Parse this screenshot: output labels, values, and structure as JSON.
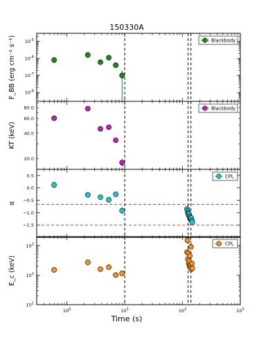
{
  "title": "150330A",
  "xlabel": "Time (s)",
  "xscale": "log",
  "xlim": [
    0.3,
    1000
  ],
  "xticks": [
    {
      "value": 1,
      "base": "10",
      "exp": "0"
    },
    {
      "value": 10,
      "base": "10",
      "exp": "1"
    },
    {
      "value": 100,
      "base": "10",
      "exp": "2"
    },
    {
      "value": 1000,
      "base": "10",
      "exp": "3"
    }
  ],
  "vlines": [
    10,
    125,
    140
  ],
  "colors": {
    "green": "#1a8a1a",
    "magenta": "#c020c0",
    "cyan": "#26c6c6",
    "orange": "#f5931e",
    "dashed_red": "#c0283c"
  },
  "chart_data": [
    {
      "type": "scatter",
      "ylabel": "F_BB (erg cm⁻² s⁻¹)",
      "yscale": "log",
      "ylim": [
        3e-09,
        3e-05
      ],
      "yticks": [
        {
          "value": 1e-05,
          "base": "10",
          "exp": "-5"
        },
        {
          "value": 1e-06,
          "base": "10",
          "exp": "-6"
        },
        {
          "value": 1e-07,
          "base": "10",
          "exp": "-7"
        },
        {
          "value": 1e-08,
          "base": "10",
          "exp": "-8"
        }
      ],
      "legend": {
        "label": "Blackbody",
        "location": "top-right"
      },
      "series": [
        {
          "name": "Blackbody",
          "x": [
            0.6,
            2.3,
            3.8,
            5.3,
            7.0,
            9.0
          ],
          "y": [
            8e-07,
            1.6e-06,
            6e-07,
            1.1e-06,
            4e-07,
            1e-07
          ],
          "yerr_low": [
            0,
            0,
            0,
            0,
            0,
            9.7e-08
          ],
          "yerr_high": [
            0,
            0,
            0,
            0,
            0,
            1e-07
          ]
        }
      ]
    },
    {
      "type": "scatter",
      "ylabel": "KT (keV)",
      "yscale": "log",
      "ylim": [
        15,
        95
      ],
      "yticks": [
        {
          "value": 20,
          "label": "20.0"
        },
        {
          "value": 40,
          "label": "40.0"
        },
        {
          "value": 60,
          "label": "60.0"
        },
        {
          "value": 80,
          "label": "80.0"
        }
      ],
      "legend": {
        "label": "Blackbody",
        "location": "top-right"
      },
      "series": [
        {
          "name": "Blackbody",
          "x": [
            0.6,
            2.3,
            3.8,
            5.3,
            7.0,
            9.0
          ],
          "y": [
            60,
            78,
            45,
            47,
            33,
            18
          ],
          "yerr_low": [
            0,
            0,
            0,
            0,
            0,
            2
          ],
          "yerr_high": [
            0,
            0,
            0,
            0,
            0,
            2
          ]
        }
      ]
    },
    {
      "type": "scatter",
      "ylabel": "α",
      "yscale": "linear",
      "ylim": [
        -2.0,
        0.75
      ],
      "yticks": [
        {
          "value": 0.5,
          "label": "0.5"
        },
        {
          "value": 0.0,
          "label": "0.0"
        },
        {
          "value": -0.5,
          "label": "−0.5"
        },
        {
          "value": -1.0,
          "label": "−1.0"
        },
        {
          "value": -1.5,
          "label": "−1.5"
        }
      ],
      "hlines": [
        -0.67,
        -1.5
      ],
      "legend": {
        "label": "CPL",
        "location": "top-right"
      },
      "series": [
        {
          "name": "CPL",
          "x": [
            0.6,
            2.3,
            3.8,
            5.3,
            7.0,
            9.0,
            120,
            122,
            124,
            126,
            128,
            130,
            132,
            134,
            136,
            138,
            140,
            142,
            145,
            148
          ],
          "y": [
            0.12,
            -0.28,
            -0.38,
            -0.48,
            -0.26,
            -0.92,
            -0.85,
            -0.92,
            -1.0,
            -1.05,
            -1.1,
            -1.05,
            -1.15,
            -1.2,
            -1.18,
            -1.25,
            -1.3,
            -1.22,
            -1.32,
            -1.38
          ],
          "yerr_low": [
            0.15,
            0,
            0,
            0,
            0.1,
            0.15,
            0,
            0,
            0,
            0,
            0,
            0,
            0,
            0,
            0,
            0,
            0,
            0,
            0,
            0
          ],
          "yerr_high": [
            0.15,
            0,
            0,
            0,
            0.1,
            0.15,
            0,
            0,
            0,
            0,
            0,
            0,
            0,
            0,
            0,
            0,
            0,
            0,
            0,
            0
          ]
        }
      ]
    },
    {
      "type": "scatter",
      "ylabel": "E_c (keV)",
      "yscale": "log",
      "ylim": [
        10,
        2000
      ],
      "yticks": [
        {
          "value": 10,
          "base": "10",
          "exp": "1"
        },
        {
          "value": 100,
          "base": "10",
          "exp": "2"
        },
        {
          "value": 1000,
          "base": "10",
          "exp": "3"
        }
      ],
      "legend": {
        "label": "CPL",
        "location": "top-right"
      },
      "series": [
        {
          "name": "CPL",
          "x": [
            0.6,
            2.3,
            3.8,
            5.3,
            7.0,
            9.0,
            120,
            122,
            124,
            126,
            128,
            130,
            132,
            134,
            136,
            138,
            140,
            142,
            145,
            148
          ],
          "y": [
            150,
            270,
            160,
            185,
            100,
            115,
            600,
            1500,
            350,
            550,
            250,
            300,
            200,
            450,
            220,
            180,
            900,
            160,
            250,
            170
          ],
          "yerr_low": [
            0,
            0,
            0,
            0,
            0,
            0,
            0,
            0,
            0,
            0,
            0,
            0,
            0,
            0,
            0,
            0,
            0,
            0,
            0,
            0
          ],
          "yerr_high": [
            0,
            0,
            0,
            0,
            0,
            0,
            0,
            0,
            0,
            0,
            0,
            0,
            0,
            0,
            0,
            0,
            0,
            0,
            0,
            0
          ]
        }
      ]
    }
  ]
}
